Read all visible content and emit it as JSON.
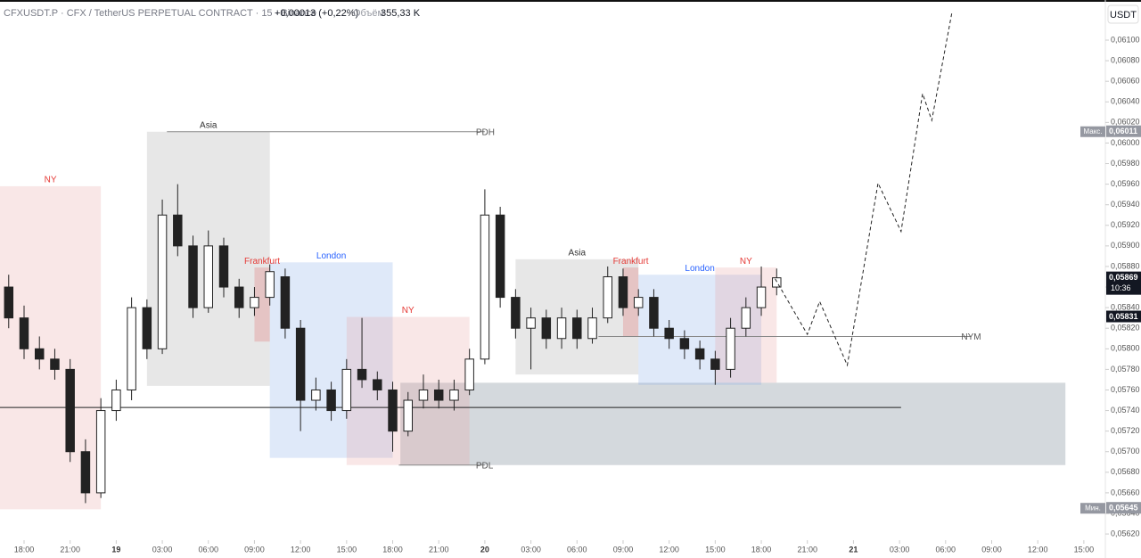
{
  "chart_data": {
    "type": "candlestick",
    "header": {
      "symbol": "CFXUSDT.P · CFX / TetherUS PERPETUAL CONTRACT · 15 · Binance",
      "change": "+0,00013 (+0,22%)",
      "volume_label": "Объём",
      "volume": "355,33 K",
      "currency": "USDT"
    },
    "xlim": [
      -1.567,
      70.4
    ],
    "ylim": [
      0.05614,
      0.06139
    ],
    "xticks": [
      {
        "value": 0,
        "label": "18:00"
      },
      {
        "value": 3,
        "label": "21:00"
      },
      {
        "value": 6,
        "label": "19"
      },
      {
        "value": 9,
        "label": "03:00"
      },
      {
        "value": 12,
        "label": "06:00"
      },
      {
        "value": 15,
        "label": "09:00"
      },
      {
        "value": 18,
        "label": "12:00"
      },
      {
        "value": 21,
        "label": "15:00"
      },
      {
        "value": 24,
        "label": "18:00"
      },
      {
        "value": 27,
        "label": "21:00"
      },
      {
        "value": 30,
        "label": "20"
      },
      {
        "value": 33,
        "label": "03:00"
      },
      {
        "value": 36,
        "label": "06:00"
      },
      {
        "value": 39,
        "label": "09:00"
      },
      {
        "value": 42,
        "label": "12:00"
      },
      {
        "value": 45,
        "label": "15:00"
      },
      {
        "value": 48,
        "label": "18:00"
      },
      {
        "value": 51,
        "label": "21:00"
      },
      {
        "value": 54,
        "label": "21"
      },
      {
        "value": 57,
        "label": "03:00"
      },
      {
        "value": 60,
        "label": "06:00"
      },
      {
        "value": 63,
        "label": "09:00"
      },
      {
        "value": 66,
        "label": "12:00"
      },
      {
        "value": 69,
        "label": "15:00"
      }
    ],
    "yticks": [
      {
        "value": 0.0562,
        "label": "0,05620"
      },
      {
        "value": 0.0564,
        "label": "0,05640"
      },
      {
        "value": 0.0566,
        "label": "0,05660"
      },
      {
        "value": 0.0568,
        "label": "0,05680"
      },
      {
        "value": 0.057,
        "label": "0,05700"
      },
      {
        "value": 0.0572,
        "label": "0,05720"
      },
      {
        "value": 0.0574,
        "label": "0,05740"
      },
      {
        "value": 0.0576,
        "label": "0,05760"
      },
      {
        "value": 0.0578,
        "label": "0,05780"
      },
      {
        "value": 0.058,
        "label": "0,05800"
      },
      {
        "value": 0.0582,
        "label": "0,05820"
      },
      {
        "value": 0.0584,
        "label": "0,05840"
      },
      {
        "value": 0.0586,
        "label": "0,05860"
      },
      {
        "value": 0.0588,
        "label": "0,05880"
      },
      {
        "value": 0.059,
        "label": "0,05900"
      },
      {
        "value": 0.0592,
        "label": "0,05920"
      },
      {
        "value": 0.0594,
        "label": "0,05940"
      },
      {
        "value": 0.0596,
        "label": "0,05960"
      },
      {
        "value": 0.0598,
        "label": "0,05980"
      },
      {
        "value": 0.06,
        "label": "0,06000"
      },
      {
        "value": 0.0602,
        "label": "0,06020"
      },
      {
        "value": 0.0604,
        "label": "0,06040"
      },
      {
        "value": 0.0606,
        "label": "0,06060"
      },
      {
        "value": 0.0608,
        "label": "0,06080"
      },
      {
        "value": 0.061,
        "label": "0,06100"
      }
    ],
    "x": [
      -1,
      0,
      1,
      2,
      3,
      4,
      5,
      6,
      7,
      8,
      9,
      10,
      11,
      12,
      13,
      14,
      15,
      16,
      17,
      18,
      19,
      20,
      21,
      22,
      23,
      24,
      25,
      26,
      27,
      28,
      29,
      30,
      31,
      32,
      33,
      34,
      35,
      36,
      37,
      38,
      39,
      40,
      41,
      42,
      43,
      44,
      45,
      46,
      47,
      48,
      49
    ],
    "open": [
      0.0586,
      0.0583,
      0.058,
      0.0579,
      0.0578,
      0.057,
      0.0566,
      0.0574,
      0.0576,
      0.0584,
      0.058,
      0.0593,
      0.059,
      0.0584,
      0.059,
      0.0586,
      0.0584,
      0.0585,
      0.0587,
      0.0582,
      0.0575,
      0.0576,
      0.0574,
      0.0578,
      0.0577,
      0.0576,
      0.0572,
      0.0575,
      0.0576,
      0.0575,
      0.0576,
      0.0579,
      0.0593,
      0.0585,
      0.0582,
      0.0583,
      0.0581,
      0.0583,
      0.0581,
      0.0583,
      0.0587,
      0.0584,
      0.0585,
      0.0582,
      0.0581,
      0.058,
      0.0579,
      0.0578,
      0.0582,
      0.0584,
      0.0586
    ],
    "high": [
      0.05872,
      0.05842,
      0.05812,
      0.058,
      0.0579,
      0.05712,
      0.05752,
      0.0577,
      0.0585,
      0.05848,
      0.05945,
      0.0596,
      0.0591,
      0.05915,
      0.05908,
      0.05868,
      0.0586,
      0.05882,
      0.05878,
      0.05828,
      0.05772,
      0.05768,
      0.0579,
      0.0583,
      0.05778,
      0.05768,
      0.05758,
      0.05775,
      0.0577,
      0.0577,
      0.058,
      0.05955,
      0.05938,
      0.05858,
      0.0584,
      0.05838,
      0.0584,
      0.05838,
      0.0584,
      0.0588,
      0.05878,
      0.05858,
      0.05858,
      0.05828,
      0.05818,
      0.05808,
      0.05798,
      0.0583,
      0.0585,
      0.0588,
      0.05878
    ],
    "low": [
      0.0582,
      0.0579,
      0.0578,
      0.0577,
      0.0569,
      0.0565,
      0.05655,
      0.0573,
      0.0575,
      0.0579,
      0.05795,
      0.0589,
      0.0583,
      0.05835,
      0.0585,
      0.0583,
      0.05832,
      0.05842,
      0.0581,
      0.0572,
      0.0574,
      0.0573,
      0.05732,
      0.05762,
      0.0575,
      0.057,
      0.05715,
      0.05742,
      0.05742,
      0.0574,
      0.05755,
      0.05785,
      0.0584,
      0.0581,
      0.0578,
      0.058,
      0.058,
      0.058,
      0.05805,
      0.05825,
      0.05832,
      0.05832,
      0.05812,
      0.058,
      0.0579,
      0.0578,
      0.05765,
      0.05772,
      0.05812,
      0.05832,
      0.05852
    ],
    "close": [
      0.0583,
      0.058,
      0.0579,
      0.0578,
      0.057,
      0.0566,
      0.0574,
      0.0576,
      0.0584,
      0.058,
      0.0593,
      0.059,
      0.0584,
      0.059,
      0.0586,
      0.0584,
      0.0585,
      0.05875,
      0.0582,
      0.0575,
      0.0576,
      0.0574,
      0.0578,
      0.0577,
      0.0576,
      0.0572,
      0.0575,
      0.0576,
      0.0575,
      0.0576,
      0.0579,
      0.0593,
      0.0585,
      0.0582,
      0.0583,
      0.0581,
      0.0583,
      0.0581,
      0.0583,
      0.0587,
      0.0584,
      0.0585,
      0.0582,
      0.0581,
      0.058,
      0.0579,
      0.0578,
      0.0582,
      0.0584,
      0.0586,
      0.05869
    ],
    "zone": {
      "color": "#a9b3bb",
      "x": [
        24.5,
        67.8
      ],
      "y": [
        0.05687,
        0.05767
      ]
    },
    "sessions": [
      {
        "label": "NY",
        "color": "#e8a0a0",
        "x": [
          -1.567,
          5
        ],
        "y": [
          0.05644,
          0.05958
        ]
      },
      {
        "label": "Asia",
        "color": "#9e9e9e",
        "x": [
          8,
          16
        ],
        "y": [
          0.05764,
          0.06011
        ]
      },
      {
        "label": "London",
        "color": "#7ea9e8",
        "x": [
          16,
          24
        ],
        "y": [
          0.05694,
          0.05884
        ]
      },
      {
        "label": "Frankfurt",
        "color": "#e05a5a",
        "x": [
          15,
          16
        ],
        "y": [
          0.05807,
          0.05879
        ]
      },
      {
        "label": "NY",
        "color": "#e8a0a0",
        "x": [
          21,
          29
        ],
        "y": [
          0.05687,
          0.05831
        ]
      },
      {
        "label": "Asia",
        "color": "#9e9e9e",
        "x": [
          32,
          40
        ],
        "y": [
          0.05775,
          0.05887
        ]
      },
      {
        "label": "Frankfurt",
        "color": "#e05a5a",
        "x": [
          39,
          40
        ],
        "y": [
          0.05812,
          0.05879
        ]
      },
      {
        "label": "London",
        "color": "#7ea9e8",
        "x": [
          40,
          48
        ],
        "y": [
          0.05765,
          0.05872
        ]
      },
      {
        "label": "NY",
        "color": "#e8a0a0",
        "x": [
          45,
          49
        ],
        "y": [
          0.05767,
          0.05879
        ]
      }
    ],
    "levels": [
      {
        "label": "PDH",
        "value": 0.06011,
        "x": [
          9.3,
          30
        ]
      },
      {
        "label": "PDL",
        "value": 0.05687,
        "x": [
          24.4,
          30
        ]
      },
      {
        "label": "NYM",
        "value": 0.05812,
        "x": [
          37.4,
          61.6
        ]
      },
      {
        "value": 0.05743,
        "x": [
          -1.567,
          57.1
        ]
      }
    ],
    "projection": {
      "x": [
        48.9,
        51,
        51.8,
        53.6,
        55.6,
        57.1,
        58.5,
        59.1,
        60.4
      ],
      "y": [
        0.05868,
        0.05814,
        0.05846,
        0.05784,
        0.05961,
        0.05914,
        0.06048,
        0.06022,
        0.06126
      ]
    },
    "price_tags": [
      {
        "tag": "Макс.",
        "value": 0.06011,
        "label": "0,06011",
        "color": "#9598a1"
      },
      {
        "tag": "10:36",
        "value": 0.05869,
        "label": "0,05869",
        "color": "#131722"
      },
      {
        "value": 0.05831,
        "label": "0,05831",
        "color": "#131722"
      },
      {
        "tag": "Мин.",
        "value": 0.05645,
        "label": "0,05645",
        "color": "#9598a1"
      }
    ]
  }
}
